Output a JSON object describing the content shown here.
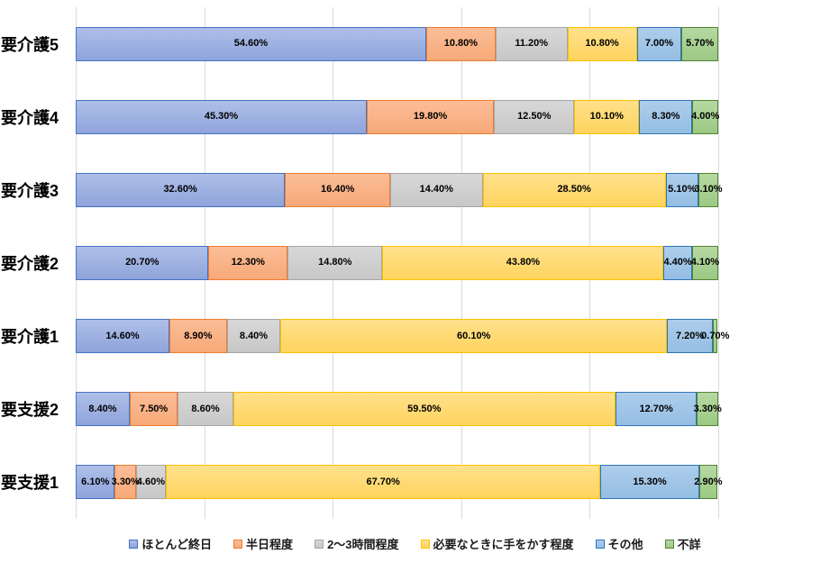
{
  "chart_data": {
    "type": "bar",
    "variant": "horizontal-stacked",
    "title": "",
    "xlabel": "",
    "ylabel": "",
    "xlim": [
      0,
      100
    ],
    "grid": true,
    "gridline_interval_pct": 20,
    "gridline_color": "#d9d9d9",
    "legend_position": "bottom",
    "value_format": "0.00%",
    "categories": [
      "要介護5",
      "要介護4",
      "要介護3",
      "要介護2",
      "要介護1",
      "要支援2",
      "要支援1"
    ],
    "series": [
      {
        "name": "ほとんど終日",
        "fill": "#8fa4db",
        "fill_light": "#aebfe8",
        "border": "#4472c4",
        "values": [
          54.6,
          45.3,
          32.6,
          20.7,
          14.6,
          8.4,
          6.1
        ]
      },
      {
        "name": "半日程度",
        "fill": "#f7a978",
        "fill_light": "#fbbd97",
        "border": "#ed7d31",
        "values": [
          10.8,
          19.8,
          16.4,
          12.3,
          8.9,
          7.5,
          3.3
        ]
      },
      {
        "name": "2〜3時間程度",
        "fill": "#c7c7c7",
        "fill_light": "#d8d8d8",
        "border": "#a6a6a6",
        "values": [
          11.2,
          12.5,
          14.4,
          14.8,
          8.4,
          8.6,
          4.6
        ]
      },
      {
        "name": "必要なときに手をかす程度",
        "fill": "#ffd45e",
        "fill_light": "#ffe18c",
        "border": "#ffc000",
        "values": [
          10.8,
          10.1,
          28.5,
          43.8,
          60.1,
          59.5,
          67.7
        ]
      },
      {
        "name": "その他",
        "fill": "#94bee3",
        "fill_light": "#aecdec",
        "border": "#2e75b6",
        "values": [
          7.0,
          8.3,
          5.1,
          4.4,
          7.2,
          12.7,
          15.3
        ]
      },
      {
        "name": "不詳",
        "fill": "#9bc983",
        "fill_light": "#b6d9a3",
        "border": "#548235",
        "values": [
          5.7,
          4.0,
          3.1,
          4.1,
          0.7,
          3.3,
          2.9
        ]
      }
    ]
  }
}
